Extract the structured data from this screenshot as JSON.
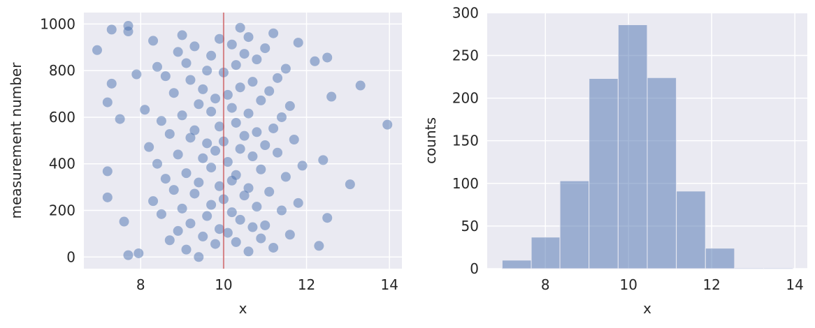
{
  "chart_data": [
    {
      "type": "scatter",
      "xlabel": "x",
      "ylabel": "measurement number",
      "xlim": [
        6.63,
        14.3
      ],
      "ylim": [
        -50,
        1049
      ],
      "xticks": [
        8,
        10,
        12,
        14
      ],
      "yticks": [
        0,
        200,
        400,
        600,
        800,
        1000
      ],
      "grid": true,
      "color": "#4c72b0",
      "alpha": 0.5,
      "vline": {
        "x": 10,
        "color": "#c44e52"
      },
      "x": [
        9.4,
        7.7,
        7.95,
        10.6,
        9.1,
        11.2,
        12.3,
        9.8,
        10.3,
        8.7,
        10.9,
        9.5,
        11.6,
        10.1,
        8.9,
        9.9,
        10.7,
        11.0,
        9.2,
        7.6,
        10.4,
        12.5,
        9.6,
        8.5,
        10.2,
        11.4,
        9.0,
        10.8,
        9.7,
        11.8,
        8.3,
        10.0,
        7.2,
        10.5,
        9.3,
        11.1,
        8.8,
        10.6,
        9.9,
        13.05,
        9.4,
        10.2,
        8.6,
        11.5,
        10.3,
        9.1,
        7.2,
        10.9,
        9.7,
        11.9,
        8.4,
        10.1,
        12.4,
        9.5,
        10.7,
        8.9,
        11.3,
        9.8,
        10.4,
        8.2,
        11.0,
        9.6,
        10.0,
        11.7,
        9.2,
        10.5,
        8.7,
        10.8,
        9.3,
        11.2,
        9.9,
        13.95,
        10.3,
        8.5,
        7.5,
        11.4,
        9.0,
        10.6,
        9.7,
        8.1,
        10.2,
        11.6,
        9.4,
        7.2,
        10.9,
        9.8,
        12.6,
        10.1,
        8.8,
        11.1,
        9.5,
        10.4,
        13.3,
        7.3,
        10.7,
        9.2,
        11.3,
        8.6,
        7.9,
        10.0,
        9.6,
        11.5,
        8.4,
        10.3,
        9.1,
        12.2,
        10.8,
        12.5,
        9.7,
        10.5,
        8.9,
        6.95,
        11.0,
        9.3,
        10.2,
        11.8,
        8.3,
        9.9,
        10.6,
        9.0,
        11.2,
        7.7,
        7.3,
        10.4,
        7.7
      ],
      "values": [
        0,
        8,
        16,
        24,
        32,
        40,
        48,
        56,
        64,
        72,
        80,
        88,
        96,
        104,
        112,
        120,
        128,
        136,
        144,
        152,
        160,
        168,
        176,
        184,
        192,
        200,
        208,
        216,
        224,
        232,
        240,
        248,
        256,
        264,
        272,
        280,
        288,
        296,
        304,
        312,
        320,
        328,
        336,
        344,
        352,
        360,
        368,
        376,
        384,
        392,
        400,
        408,
        416,
        424,
        432,
        440,
        448,
        456,
        464,
        472,
        480,
        488,
        496,
        504,
        512,
        520,
        528,
        536,
        544,
        552,
        560,
        568,
        576,
        584,
        592,
        600,
        608,
        616,
        624,
        632,
        640,
        648,
        656,
        664,
        672,
        680,
        688,
        696,
        704,
        712,
        720,
        728,
        736,
        744,
        752,
        760,
        768,
        776,
        784,
        792,
        800,
        808,
        816,
        824,
        832,
        840,
        848,
        856,
        864,
        872,
        880,
        888,
        896,
        904,
        912,
        920,
        928,
        936,
        944,
        952,
        960,
        968,
        976,
        984,
        992
      ]
    },
    {
      "type": "histogram",
      "xlabel": "x",
      "ylabel": "counts",
      "xlim": [
        6.6,
        14.3
      ],
      "ylim": [
        0,
        300.3
      ],
      "xticks": [
        8,
        10,
        12,
        14
      ],
      "yticks": [
        0,
        50,
        100,
        150,
        200,
        250,
        300
      ],
      "grid": true,
      "color": "#4c72b0",
      "alpha": 0.5,
      "bins": [
        6.96,
        7.66,
        8.35,
        9.05,
        9.75,
        10.45,
        11.15,
        11.85,
        12.55,
        13.25,
        13.95
      ],
      "values": [
        10,
        37,
        103,
        223,
        286,
        224,
        91,
        24,
        1,
        1
      ]
    }
  ]
}
